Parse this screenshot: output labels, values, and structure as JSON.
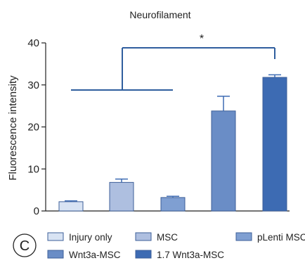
{
  "chart_data": {
    "type": "bar",
    "title": "Neurofilament",
    "ylabel": "Fluorescence intensity",
    "xlabel": "",
    "ylim": [
      0,
      40
    ],
    "yticks": [
      0,
      10,
      20,
      30,
      40
    ],
    "grid": false,
    "categories": [
      "Injury only",
      "MSC",
      "pLenti MSC",
      "Wnt3a-MSC",
      "1.7 Wnt3a-MSC"
    ],
    "values": [
      2.2,
      6.8,
      3.2,
      23.8,
      31.8
    ],
    "errors": [
      0.2,
      0.8,
      0.3,
      3.5,
      0.6
    ],
    "colors": [
      "#d8e3f3",
      "#aebfe0",
      "#7f9fd2",
      "#6a8dc6",
      "#3d6bb3"
    ],
    "significance": {
      "label": "*",
      "left_group": [
        "Injury only",
        "MSC",
        "pLenti MSC"
      ],
      "right_group": [
        "1.7 Wnt3a-MSC"
      ]
    },
    "legend_position": "bottom",
    "panel_letter": "C"
  }
}
